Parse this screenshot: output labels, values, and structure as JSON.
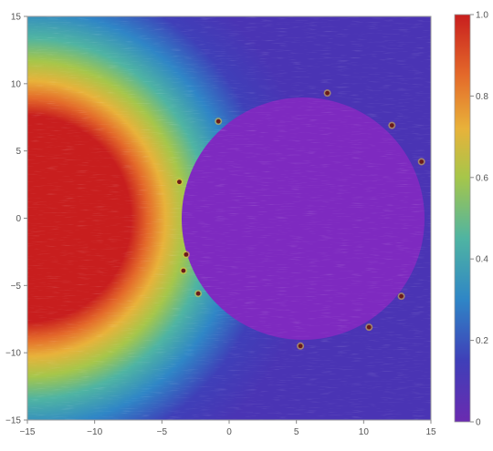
{
  "chart_data": {
    "type": "heatmap",
    "title": "",
    "xlabel": "",
    "ylabel": "",
    "xlim": [
      -15,
      15
    ],
    "ylim": [
      -15,
      15
    ],
    "x_ticks": [
      -15,
      -10,
      -5,
      0,
      5,
      10,
      15
    ],
    "y_ticks": [
      -15,
      -10,
      -5,
      0,
      5,
      10,
      15
    ],
    "overlay": "vector field streamlines",
    "grid": false,
    "legend": "right",
    "colorbar": {
      "range": [
        0,
        1
      ],
      "ticks": [
        0,
        0.2,
        0.4,
        0.6,
        0.8,
        1.0
      ],
      "tick_labels": [
        "0",
        "0.2",
        "0.4",
        "0.6",
        "0.8",
        "1.0"
      ],
      "colors": [
        "#6a2bb0",
        "#3f3fb8",
        "#2f86c6",
        "#4fb4a2",
        "#a6c64a",
        "#e8b23a",
        "#e46a2a",
        "#c81e1e"
      ]
    },
    "regions": [
      {
        "name": "source",
        "center": [
          -15,
          0
        ],
        "radius": 7.5,
        "value": 1.0,
        "decay_to_zero_at_radius": 21
      },
      {
        "name": "disk",
        "center": [
          6,
          -0.5
        ],
        "radius": 9.0,
        "value": 0.0
      }
    ],
    "boundary_points": [
      [
        -0.8,
        7.2
      ],
      [
        7.3,
        9.3
      ],
      [
        12.1,
        6.9
      ],
      [
        14.3,
        4.2
      ],
      [
        -3.7,
        2.7
      ],
      [
        -3.2,
        -2.7
      ],
      [
        -3.4,
        -3.9
      ],
      [
        -2.3,
        -5.6
      ],
      [
        12.8,
        -5.8
      ],
      [
        10.4,
        -8.1
      ],
      [
        5.3,
        -9.5
      ]
    ]
  }
}
